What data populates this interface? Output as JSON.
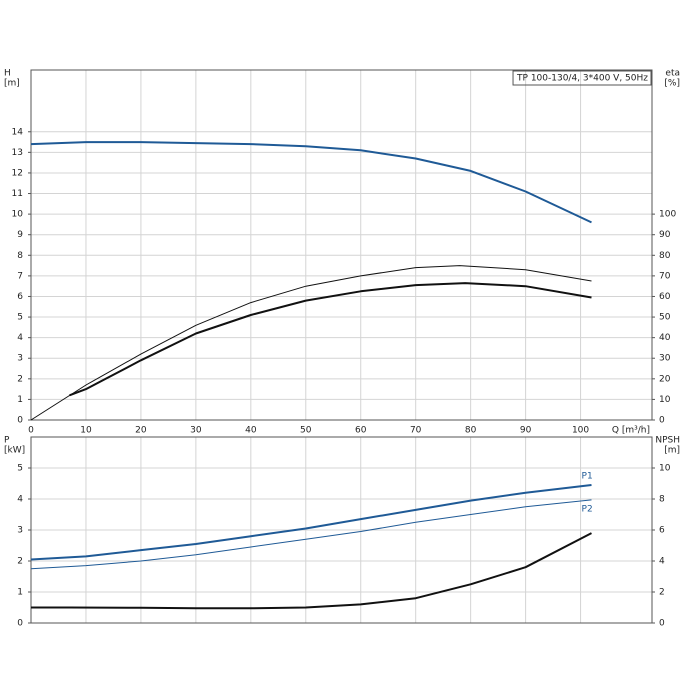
{
  "chart_data": [
    {
      "type": "line",
      "legend_text": "TP 100-130/4, 3*400 V, 50Hz",
      "x_label": "Q [m³/h]",
      "y_label": [
        "H",
        "[m]"
      ],
      "y2_label": [
        "eta",
        "[%]"
      ],
      "xlim": [
        0,
        113
      ],
      "xticks": [
        0,
        10,
        20,
        30,
        40,
        50,
        60,
        70,
        80,
        90,
        100
      ],
      "ylim": [
        0,
        17
      ],
      "yticks": [
        0,
        1,
        2,
        3,
        4,
        5,
        6,
        7,
        8,
        9,
        10,
        11,
        12,
        13,
        14
      ],
      "y2lim": [
        0,
        170
      ],
      "y2ticks": [
        0,
        10,
        20,
        30,
        40,
        50,
        60,
        70,
        80,
        90,
        100
      ],
      "grid": true,
      "series": [
        {
          "color": "#1f5a96",
          "width": 2,
          "x": [
            0,
            10,
            20,
            30,
            40,
            50,
            60,
            70,
            80,
            90,
            102
          ],
          "values": [
            13.4,
            13.5,
            13.5,
            13.45,
            13.4,
            13.3,
            13.1,
            12.7,
            12.1,
            11.1,
            9.6
          ]
        },
        {
          "color": "#111111",
          "width": 1,
          "axis": "y2",
          "x": [
            0,
            10,
            20,
            30,
            40,
            50,
            60,
            70,
            78,
            90,
            102
          ],
          "values": [
            0,
            17,
            32,
            46,
            57,
            65,
            70,
            74,
            75,
            73,
            67.5
          ]
        },
        {
          "color": "#111111",
          "width": 2,
          "axis": "y2",
          "x": [
            7,
            10,
            20,
            30,
            40,
            50,
            60,
            70,
            79,
            90,
            102
          ],
          "values": [
            12,
            15,
            29,
            42,
            51,
            58,
            62.5,
            65.5,
            66.5,
            65,
            59.5
          ]
        }
      ]
    },
    {
      "type": "line",
      "y_label": [
        "P",
        "[kW]"
      ],
      "y2_label": [
        "NPSH",
        "[m]"
      ],
      "xlim": [
        0,
        113
      ],
      "xticks": [
        0,
        10,
        20,
        30,
        40,
        50,
        60,
        70,
        80,
        90,
        100
      ],
      "ylim": [
        0,
        6
      ],
      "yticks": [
        0,
        1,
        2,
        3,
        4,
        5
      ],
      "y2lim": [
        0,
        12
      ],
      "y2ticks": [
        0,
        2,
        4,
        6,
        8,
        10
      ],
      "grid": true,
      "series": [
        {
          "name": "P1",
          "color": "#1f5a96",
          "width": 2,
          "x": [
            0,
            10,
            20,
            30,
            40,
            50,
            60,
            70,
            80,
            90,
            102
          ],
          "values": [
            2.05,
            2.15,
            2.35,
            2.55,
            2.8,
            3.05,
            3.35,
            3.65,
            3.95,
            4.2,
            4.45
          ]
        },
        {
          "name": "P2",
          "color": "#1f5a96",
          "width": 1,
          "x": [
            0,
            10,
            20,
            30,
            40,
            50,
            60,
            70,
            80,
            90,
            102
          ],
          "values": [
            1.75,
            1.85,
            2.0,
            2.2,
            2.45,
            2.7,
            2.95,
            3.25,
            3.5,
            3.75,
            3.97
          ]
        },
        {
          "color": "#111111",
          "width": 2,
          "axis": "y2",
          "x": [
            0,
            7,
            20,
            30,
            40,
            50,
            60,
            70,
            80,
            90,
            102
          ],
          "values": [
            1.0,
            1.0,
            0.98,
            0.95,
            0.95,
            1.0,
            1.2,
            1.6,
            2.5,
            3.6,
            5.8
          ]
        }
      ]
    }
  ]
}
